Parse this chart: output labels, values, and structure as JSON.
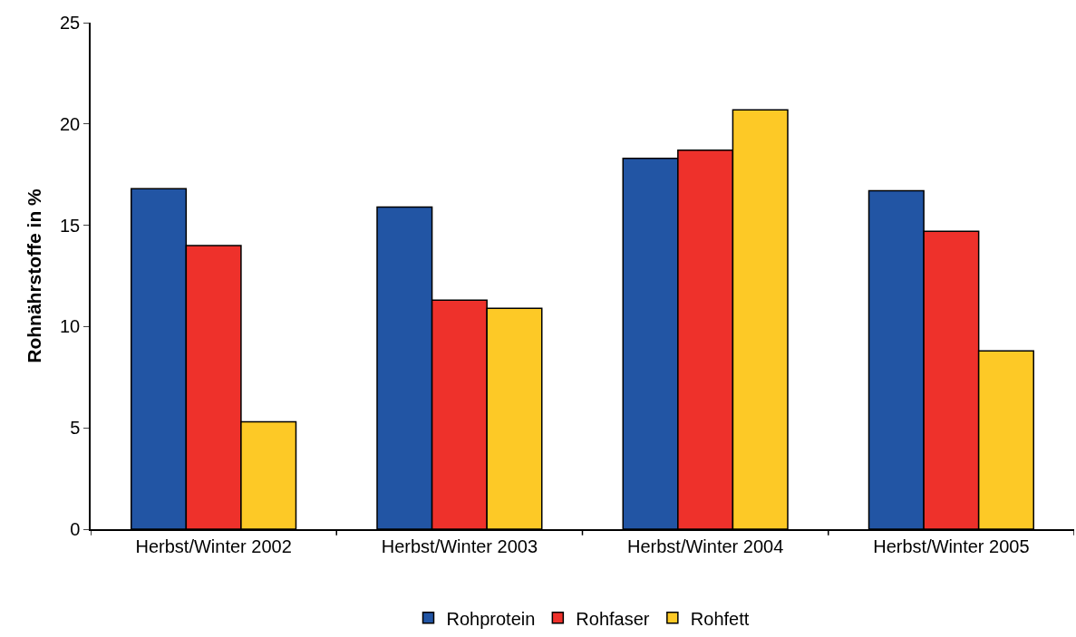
{
  "chart_data": {
    "type": "bar",
    "ylabel": "Rohnährstoffe in %",
    "categories": [
      "Herbst/Winter 2002",
      "Herbst/Winter 2003",
      "Herbst/Winter 2004",
      "Herbst/Winter 2005"
    ],
    "series": [
      {
        "name": "Rohprotein",
        "color": "#2255a4",
        "values": [
          16.8,
          15.9,
          18.3,
          16.7
        ]
      },
      {
        "name": "Rohfaser",
        "color": "#ee312b",
        "values": [
          14.0,
          11.3,
          18.7,
          14.7
        ]
      },
      {
        "name": "Rohfett",
        "color": "#fdc926",
        "values": [
          5.3,
          10.9,
          20.7,
          8.8
        ]
      }
    ],
    "ylim": [
      0,
      25
    ],
    "yticks": [
      0,
      5,
      10,
      15,
      20,
      25
    ],
    "legend": "bottom"
  }
}
